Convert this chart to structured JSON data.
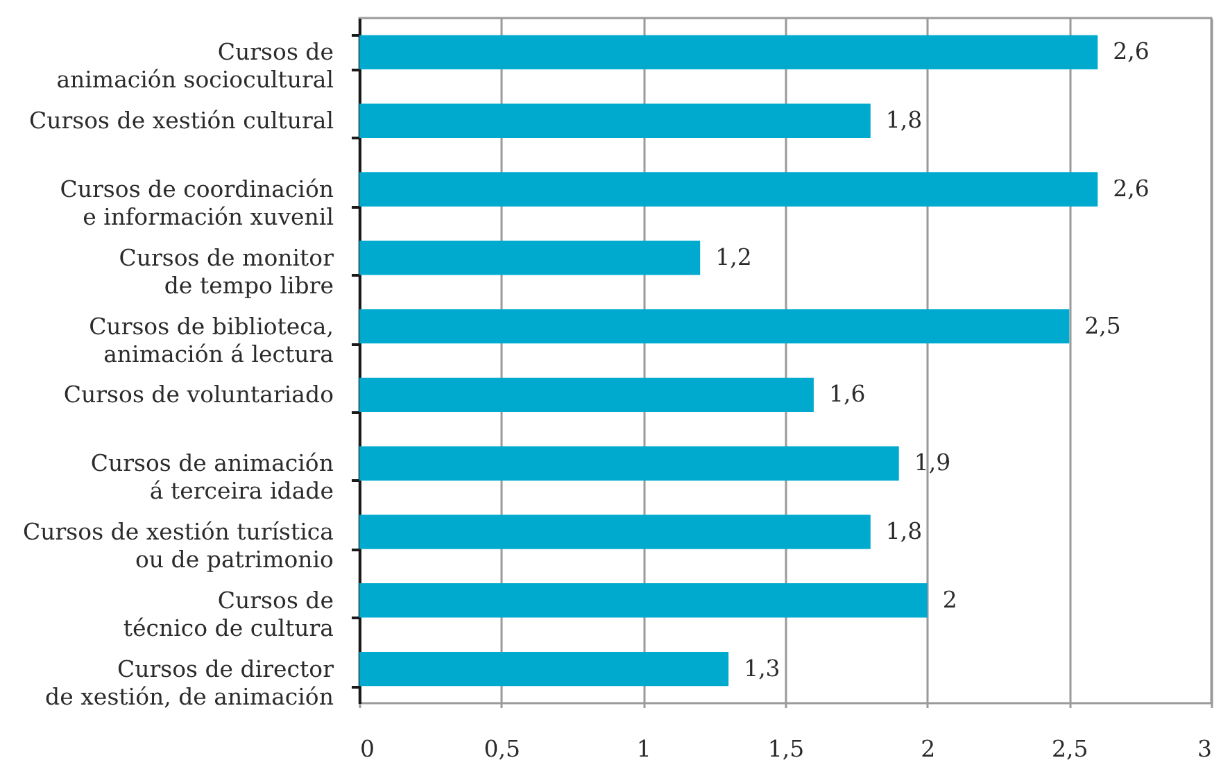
{
  "chart_data": {
    "type": "bar",
    "orientation": "horizontal",
    "categories": [
      "Cursos de\nanimación sociocultural",
      "Cursos de xestión cultural",
      "Cursos de coordinación\ne información xuvenil",
      "Cursos de monitor\nde tempo libre",
      "Cursos de biblioteca,\nanimación á lectura",
      "Cursos de voluntariado",
      "Cursos de animación\ná terceira idade",
      "Cursos de xestión turística\nou de patrimonio",
      "Cursos de\ntécnico de cultura",
      "Cursos de director\nde xestión, de animación"
    ],
    "values": [
      2.6,
      1.8,
      2.6,
      1.2,
      2.5,
      1.6,
      1.9,
      1.8,
      2,
      1.3
    ],
    "value_labels": [
      "2,6",
      "1,8",
      "2,6",
      "1,2",
      "2,5",
      "1,6",
      "1,9",
      "1,8",
      "2",
      "1,3"
    ],
    "color": "#00aacf",
    "xlim": [
      0,
      3
    ],
    "xticks": [
      0,
      {
        "value": 0.5,
        "label": "0,5"
      },
      1,
      {
        "value": 1.5,
        "label": "1,5"
      },
      2,
      {
        "value": 2.5,
        "label": "2,5"
      },
      3
    ],
    "grid": "x"
  }
}
